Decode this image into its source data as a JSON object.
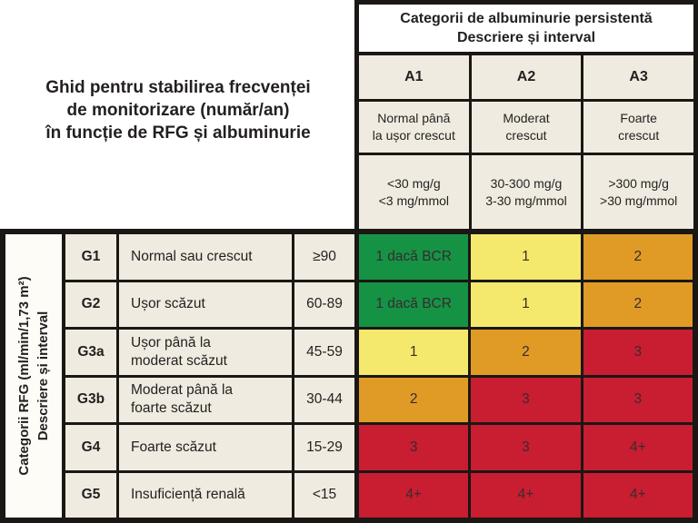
{
  "title": {
    "line1": "Ghid pentru stabilirea frecvenței",
    "line2": "de monitorizare (număr/an)",
    "line3": "în funcție de RFG și albuminurie"
  },
  "albuminuria": {
    "header_line1": "Categorii de albuminurie persistentă",
    "header_line2": "Descriere și interval",
    "columns": [
      {
        "code": "A1",
        "description": "Normal până\nla ușor crescut",
        "range": "<30 mg/g\n<3 mg/mmol"
      },
      {
        "code": "A2",
        "description": "Moderat\ncrescut",
        "range": "30-300 mg/g\n3-30 mg/mmol"
      },
      {
        "code": "A3",
        "description": "Foarte\ncrescut",
        "range": ">300 mg/g\n>30 mg/mmol"
      }
    ]
  },
  "gfr": {
    "axis_label_line1": "Categorii RFG (ml/min/1,73 m²)",
    "axis_label_line2": "Descriere și interval",
    "rows": [
      {
        "code": "G1",
        "description": "Normal sau crescut",
        "range": "≥90",
        "cells": [
          {
            "text": "1 dacă BCR",
            "color": "green"
          },
          {
            "text": "1",
            "color": "yellow"
          },
          {
            "text": "2",
            "color": "orange"
          }
        ]
      },
      {
        "code": "G2",
        "description": "Ușor scăzut",
        "range": "60-89",
        "cells": [
          {
            "text": "1 dacă BCR",
            "color": "green"
          },
          {
            "text": "1",
            "color": "yellow"
          },
          {
            "text": "2",
            "color": "orange"
          }
        ]
      },
      {
        "code": "G3a",
        "description": "Ușor până la\nmoderat scăzut",
        "range": "45-59",
        "cells": [
          {
            "text": "1",
            "color": "yellow"
          },
          {
            "text": "2",
            "color": "orange"
          },
          {
            "text": "3",
            "color": "red"
          }
        ]
      },
      {
        "code": "G3b",
        "description": "Moderat până la\nfoarte scăzut",
        "range": "30-44",
        "cells": [
          {
            "text": "2",
            "color": "orange"
          },
          {
            "text": "3",
            "color": "red"
          },
          {
            "text": "3",
            "color": "red"
          }
        ]
      },
      {
        "code": "G4",
        "description": "Foarte scăzut",
        "range": "15-29",
        "cells": [
          {
            "text": "3",
            "color": "red"
          },
          {
            "text": "3",
            "color": "red"
          },
          {
            "text": "4+",
            "color": "red"
          }
        ]
      },
      {
        "code": "G5",
        "description": "Insuficiență renală",
        "range": "<15",
        "cells": [
          {
            "text": "4+",
            "color": "red"
          },
          {
            "text": "4+",
            "color": "red"
          },
          {
            "text": "4+",
            "color": "red"
          }
        ]
      }
    ]
  },
  "colors": {
    "green": "#169245",
    "yellow": "#F5E96D",
    "orange": "#E09B26",
    "red": "#C91D31",
    "grid": "#1A1714",
    "cream": "#EFEBE0"
  },
  "chart_data": {
    "type": "heatmap",
    "title": "Ghid pentru stabilirea frecvenței de monitorizare (număr/an) în funcție de RFG și albuminurie",
    "xlabel": "Categorii de albuminurie persistentă — Descriere și interval",
    "ylabel": "Categorii RFG (ml/min/1,73 m²) — Descriere și interval",
    "columns": [
      "A1",
      "A2",
      "A3"
    ],
    "column_descriptions": [
      "Normal până la ușor crescut",
      "Moderat crescut",
      "Foarte crescut"
    ],
    "column_ranges": [
      "<30 mg/g, <3 mg/mmol",
      "30-300 mg/g, 3-30 mg/mmol",
      ">300 mg/g, >30 mg/mmol"
    ],
    "rows": [
      "G1",
      "G2",
      "G3a",
      "G3b",
      "G4",
      "G5"
    ],
    "row_descriptions": [
      "Normal sau crescut",
      "Ușor scăzut",
      "Ușor până la moderat scăzut",
      "Moderat până la foarte scăzut",
      "Foarte scăzut",
      "Insuficiență renală"
    ],
    "row_ranges": [
      "≥90",
      "60-89",
      "45-59",
      "30-44",
      "15-29",
      "<15"
    ],
    "values": [
      [
        "1 dacă BCR",
        "1",
        "2"
      ],
      [
        "1 dacă BCR",
        "1",
        "2"
      ],
      [
        "1",
        "2",
        "3"
      ],
      [
        "2",
        "3",
        "3"
      ],
      [
        "3",
        "3",
        "4+"
      ],
      [
        "4+",
        "4+",
        "4+"
      ]
    ],
    "cell_colors": [
      [
        "green",
        "yellow",
        "orange"
      ],
      [
        "green",
        "yellow",
        "orange"
      ],
      [
        "yellow",
        "orange",
        "red"
      ],
      [
        "orange",
        "red",
        "red"
      ],
      [
        "red",
        "red",
        "red"
      ],
      [
        "red",
        "red",
        "red"
      ]
    ]
  }
}
